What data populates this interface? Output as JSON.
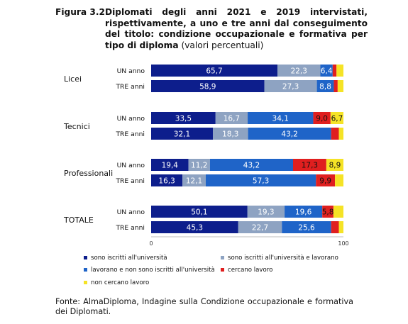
{
  "figure_label": "Figura 3.2",
  "title_bold": "Diplomati degli anni 2021 e 2019 intervistati, rispettivamente, a uno e tre anni dal conseguimento del titolo: condizione occupazionale e formativa per tipo di diploma",
  "title_normal": "(valori percentuali)",
  "source": "Fonte: AlmaDiploma, Indagine sulla Condizione occupazionale e formativa dei Diplomati.",
  "colors": {
    "universita": "#0d1e8c",
    "universita_lavorano": "#8ea3c2",
    "lavorano": "#1f64c8",
    "cercano": "#e01f1f",
    "non_cercano": "#f5e326"
  },
  "chart_data": {
    "type": "bar",
    "orientation": "horizontal",
    "stacked": true,
    "xlim": [
      0,
      100
    ],
    "x_ticks": [
      "0",
      "100"
    ],
    "groups": [
      {
        "label": "Licei",
        "bars": [
          {
            "label": "UN anno",
            "values": [
              65.7,
              22.3,
              6.4,
              2.0,
              3.6
            ],
            "labels": [
              "65,7",
              "22,3",
              "6,4",
              "",
              ""
            ]
          },
          {
            "label": "TRE anni",
            "values": [
              58.9,
              27.3,
              8.8,
              2.0,
              3.0
            ],
            "labels": [
              "58,9",
              "27,3",
              "8,8",
              "",
              ""
            ]
          }
        ]
      },
      {
        "label": "Tecnici",
        "bars": [
          {
            "label": "UN anno",
            "values": [
              33.5,
              16.7,
              34.1,
              9.0,
              6.7
            ],
            "labels": [
              "33,5",
              "16,7",
              "34,1",
              "9,0",
              "6,7"
            ]
          },
          {
            "label": "TRE anni",
            "values": [
              32.1,
              18.3,
              43.2,
              4.0,
              2.4
            ],
            "labels": [
              "32,1",
              "18,3",
              "43,2",
              "",
              ""
            ]
          }
        ]
      },
      {
        "label": "Professionali",
        "bars": [
          {
            "label": "UN anno",
            "values": [
              19.4,
              11.2,
              43.2,
              17.3,
              8.9
            ],
            "labels": [
              "19,4",
              "11,2",
              "43,2",
              "17,3",
              "8,9"
            ]
          },
          {
            "label": "TRE anni",
            "values": [
              16.3,
              12.1,
              57.3,
              9.9,
              4.4
            ],
            "labels": [
              "16,3",
              "12,1",
              "57,3",
              "9,9",
              ""
            ]
          }
        ]
      },
      {
        "label": "TOTALE",
        "bars": [
          {
            "label": "UN anno",
            "values": [
              50.1,
              19.3,
              19.6,
              5.8,
              5.2
            ],
            "labels": [
              "50,1",
              "19,3",
              "19,6",
              "5,8",
              ""
            ]
          },
          {
            "label": "TRE anni",
            "values": [
              45.3,
              22.7,
              25.6,
              4.0,
              2.4
            ],
            "labels": [
              "45,3",
              "22,7",
              "25,6",
              "",
              ""
            ]
          }
        ]
      }
    ],
    "series": [
      {
        "name": "sono iscritti all'università",
        "color": "#0d1e8c"
      },
      {
        "name": "sono iscritti all'università e lavorano",
        "color": "#8ea3c2"
      },
      {
        "name": "lavorano e non sono iscritti all'università",
        "color": "#1f64c8"
      },
      {
        "name": "cercano lavoro",
        "color": "#e01f1f"
      },
      {
        "name": "non cercano lavoro",
        "color": "#f5e326"
      }
    ],
    "legend_position": "bottom"
  }
}
